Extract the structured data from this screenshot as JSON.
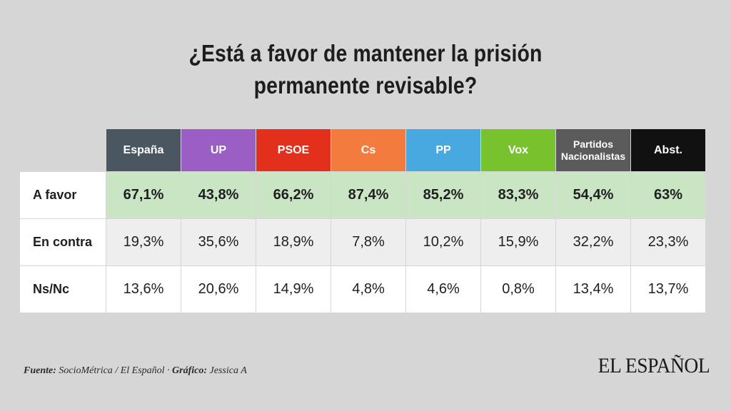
{
  "title": {
    "line1": "¿Está a favor de mantener la prisión",
    "line2": "permanente revisable?"
  },
  "chart_data": {
    "type": "table",
    "columns": [
      {
        "label": "España",
        "color": "#4a5760"
      },
      {
        "label": "UP",
        "color": "#9a5ec4"
      },
      {
        "label": "PSOE",
        "color": "#e2301d"
      },
      {
        "label": "Cs",
        "color": "#f47b3e"
      },
      {
        "label": "PP",
        "color": "#47a9e0"
      },
      {
        "label": "Vox",
        "color": "#78c22e"
      },
      {
        "label": "Partidos Nacionalistas",
        "color": "#5b5b5b"
      },
      {
        "label": "Abst.",
        "color": "#111111"
      }
    ],
    "rows": [
      {
        "label": "A favor",
        "values": [
          "67,1%",
          "43,8%",
          "66,2%",
          "87,4%",
          "85,2%",
          "83,3%",
          "54,4%",
          "63%"
        ]
      },
      {
        "label": "En contra",
        "values": [
          "19,3%",
          "35,6%",
          "18,9%",
          "7,8%",
          "10,2%",
          "15,9%",
          "32,2%",
          "23,3%"
        ]
      },
      {
        "label": "Ns/Nc",
        "values": [
          "13,6%",
          "20,6%",
          "14,9%",
          "4,8%",
          "4,6%",
          "0,8%",
          "13,4%",
          "13,7%"
        ]
      }
    ]
  },
  "footer": {
    "source_label": "Fuente:",
    "source_text": "SocioMétrica / El Español ·",
    "graphic_label": "Gráfico:",
    "graphic_text": "Jessica A"
  },
  "logo": "EL ESPAÑOL"
}
